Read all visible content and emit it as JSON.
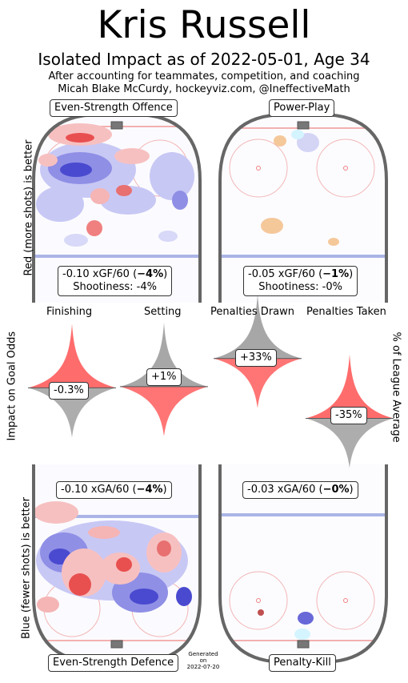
{
  "header": {
    "title": "Kris Russell",
    "subtitle": "Isolated Impact as of 2022-05-01, Age 34",
    "note_line1": "After accounting for teammates, competition, and coaching",
    "note_line2": "Micah Blake McCurdy, hockeyviz.com, @IneffectiveMath"
  },
  "axis_labels": {
    "left_top": "Red (more shots) is better",
    "left_mid": "Impact on Goal Odds",
    "left_bottom": "Blue (fewer shots) is better",
    "right_mid": "% of League Average"
  },
  "panels": {
    "ev_offence": {
      "title": "Even-Strength Offence",
      "stat": "-0.10 xGF/60",
      "pct": "−4%",
      "shootiness": "Shootiness: -4%"
    },
    "power_play": {
      "title": "Power-Play",
      "stat": "-0.05 xGF/60",
      "pct": "−1%",
      "shootiness": "Shootiness: -0%"
    },
    "ev_defence": {
      "title": "Even-Strength Defence",
      "stat": "-0.10 xGA/60",
      "pct": "−4%"
    },
    "penalty_kill": {
      "title": "Penalty-Kill",
      "stat": "-0.03 xGA/60",
      "pct": "−0%"
    }
  },
  "generated": {
    "line1": "Generated",
    "line2": "on",
    "line3": "2022-07-20"
  },
  "colors": {
    "red": "#ff3b3b",
    "blue": "#3b3bd8",
    "grey": "#8a8a8a",
    "rink": "#666666"
  },
  "chart_data": {
    "type": "violin",
    "series": [
      {
        "name": "Finishing",
        "value_label": "-0.3%",
        "value": -0.3
      },
      {
        "name": "Setting",
        "value_label": "+1%",
        "value": 1
      },
      {
        "name": "Penalties Drawn",
        "value_label": "+33%",
        "value": 33
      },
      {
        "name": "Penalties Taken",
        "value_label": "-35%",
        "value": -35
      }
    ]
  }
}
